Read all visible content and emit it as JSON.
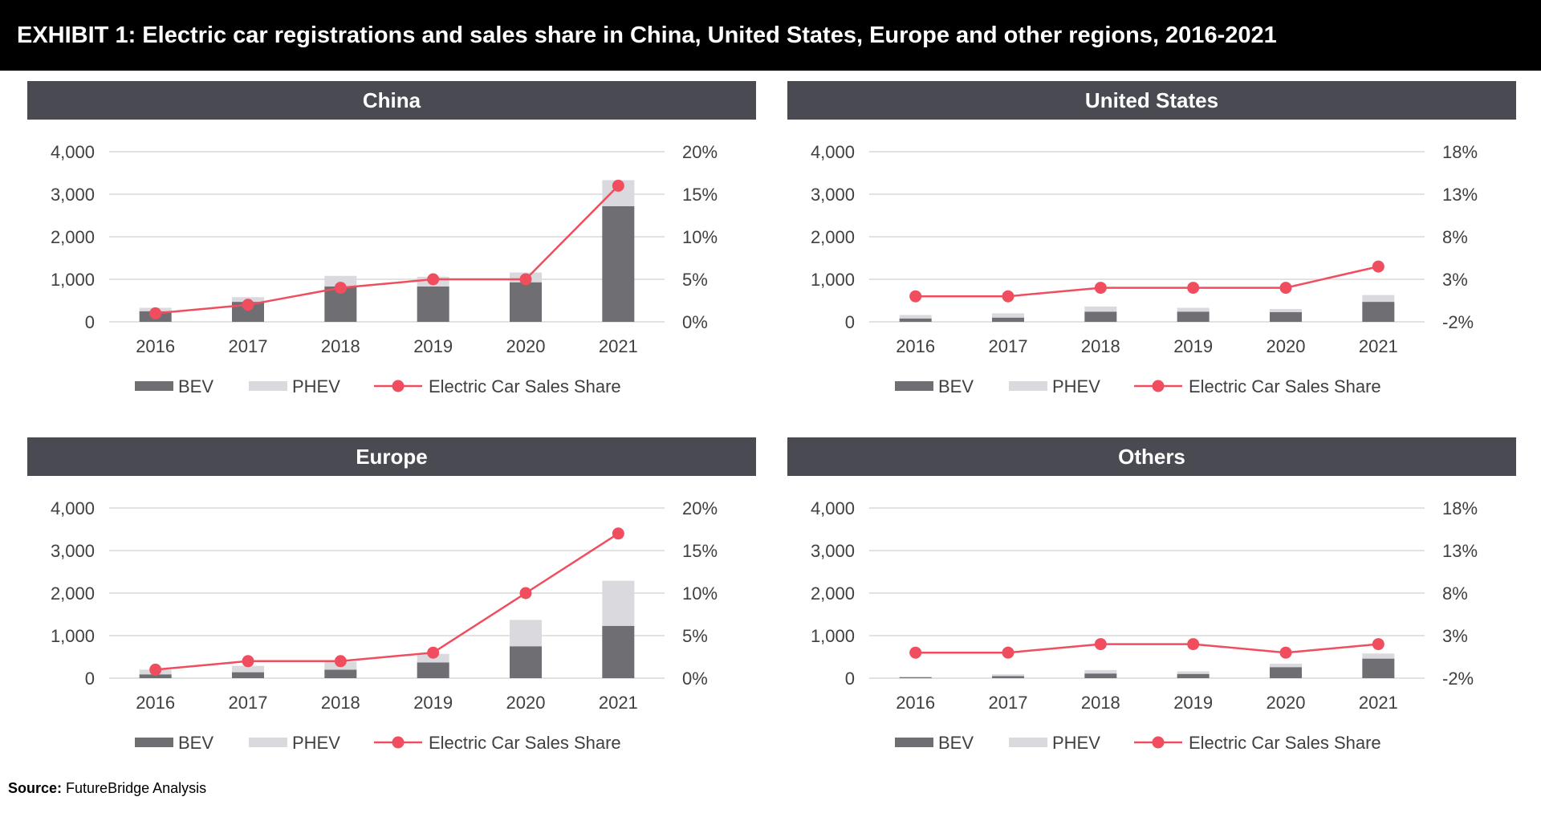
{
  "header": {
    "title": "EXHIBIT 1: Electric car registrations and sales share in China, United States, Europe and other regions, 2016-2021"
  },
  "source": {
    "label": "Source:",
    "text": "FutureBridge Analysis"
  },
  "colors": {
    "bev": "#6e6e73",
    "phev": "#d9d9de",
    "share": "#f04e5e",
    "grid": "#d9d9d9",
    "panel_header": "#4a4a52"
  },
  "chart_data": [
    {
      "type": "bar",
      "title": "China",
      "categories": [
        "2016",
        "2017",
        "2018",
        "2019",
        "2020",
        "2021"
      ],
      "ylim": [
        0,
        4000
      ],
      "yticks": [
        "0",
        "1,000",
        "2,000",
        "3,000",
        "4,000"
      ],
      "y2lim": [
        0,
        20
      ],
      "y2ticks": [
        "0%",
        "5%",
        "10%",
        "15%",
        "20%"
      ],
      "series": [
        {
          "name": "BEV",
          "kind": "stacked-bar",
          "values": [
            250,
            470,
            830,
            830,
            930,
            2720
          ]
        },
        {
          "name": "PHEV",
          "kind": "stacked-bar",
          "values": [
            80,
            110,
            250,
            230,
            230,
            610
          ]
        },
        {
          "name": "Electric Car Sales Share",
          "kind": "line",
          "axis": "secondary",
          "values": [
            1,
            2,
            4,
            5,
            5,
            16
          ]
        }
      ],
      "legend": "bottom"
    },
    {
      "type": "bar",
      "title": "United States",
      "categories": [
        "2016",
        "2017",
        "2018",
        "2019",
        "2020",
        "2021"
      ],
      "ylim": [
        0,
        4000
      ],
      "yticks": [
        "0",
        "1,000",
        "2,000",
        "3,000",
        "4,000"
      ],
      "y2lim": [
        -2,
        18
      ],
      "y2ticks": [
        "-2%",
        "3%",
        "8%",
        "13%",
        "18%"
      ],
      "series": [
        {
          "name": "BEV",
          "kind": "stacked-bar",
          "values": [
            80,
            100,
            240,
            240,
            230,
            470
          ]
        },
        {
          "name": "PHEV",
          "kind": "stacked-bar",
          "values": [
            80,
            100,
            120,
            90,
            70,
            160
          ]
        },
        {
          "name": "Electric Car Sales Share",
          "kind": "line",
          "axis": "secondary",
          "values": [
            1,
            1,
            2,
            2,
            2,
            4.5
          ]
        }
      ],
      "legend": "bottom"
    },
    {
      "type": "bar",
      "title": "Europe",
      "categories": [
        "2016",
        "2017",
        "2018",
        "2019",
        "2020",
        "2021"
      ],
      "ylim": [
        0,
        4000
      ],
      "yticks": [
        "0",
        "1,000",
        "2,000",
        "3,000",
        "4,000"
      ],
      "y2lim": [
        0,
        20
      ],
      "y2ticks": [
        "0%",
        "5%",
        "10%",
        "15%",
        "20%"
      ],
      "series": [
        {
          "name": "BEV",
          "kind": "stacked-bar",
          "values": [
            90,
            140,
            200,
            370,
            750,
            1230
          ]
        },
        {
          "name": "PHEV",
          "kind": "stacked-bar",
          "values": [
            110,
            150,
            190,
            200,
            620,
            1060
          ]
        },
        {
          "name": "Electric Car Sales Share",
          "kind": "line",
          "axis": "secondary",
          "values": [
            1,
            2,
            2,
            3,
            10,
            17
          ]
        }
      ],
      "legend": "bottom"
    },
    {
      "type": "bar",
      "title": "Others",
      "categories": [
        "2016",
        "2017",
        "2018",
        "2019",
        "2020",
        "2021"
      ],
      "ylim": [
        0,
        4000
      ],
      "yticks": [
        "0",
        "1,000",
        "2,000",
        "3,000",
        "4,000"
      ],
      "y2lim": [
        -2,
        18
      ],
      "y2ticks": [
        "-2%",
        "3%",
        "8%",
        "13%",
        "18%"
      ],
      "series": [
        {
          "name": "BEV",
          "kind": "stacked-bar",
          "values": [
            20,
            50,
            110,
            100,
            260,
            460
          ]
        },
        {
          "name": "PHEV",
          "kind": "stacked-bar",
          "values": [
            20,
            40,
            80,
            60,
            80,
            120
          ]
        },
        {
          "name": "Electric Car Sales Share",
          "kind": "line",
          "axis": "secondary",
          "values": [
            1,
            1,
            2,
            2,
            1,
            2
          ]
        }
      ],
      "legend": "bottom"
    }
  ]
}
